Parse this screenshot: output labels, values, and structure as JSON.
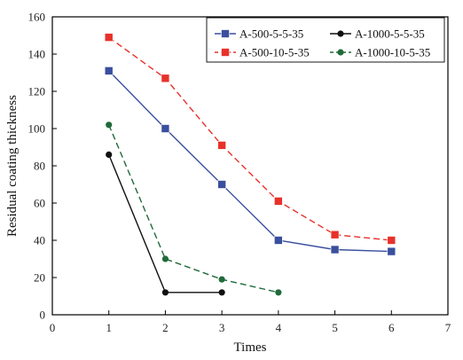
{
  "chart_data": {
    "type": "line",
    "xlabel": "Times",
    "ylabel": "Residual coating thickness",
    "xlim": [
      0,
      7
    ],
    "ylim": [
      0,
      160
    ],
    "xticks": [
      0,
      1,
      2,
      3,
      4,
      5,
      6,
      7
    ],
    "yticks": [
      0,
      20,
      40,
      60,
      80,
      100,
      120,
      140,
      160
    ],
    "grid": false,
    "legend_position": "top-right",
    "series": [
      {
        "name": "A-500-5-5-35",
        "color": "#3a4f9e",
        "line_style": "solid",
        "marker": "square",
        "x": [
          1,
          2,
          3,
          4,
          5,
          6
        ],
        "y": [
          131,
          100,
          70,
          40,
          35,
          34
        ]
      },
      {
        "name": "A-500-10-5-35",
        "color": "#e8312a",
        "line_style": "dashed",
        "marker": "square",
        "x": [
          1,
          2,
          3,
          4,
          5,
          6
        ],
        "y": [
          149,
          127,
          91,
          61,
          43,
          40
        ]
      },
      {
        "name": "A-1000-5-5-35",
        "color": "#111111",
        "line_style": "solid",
        "marker": "circle",
        "x": [
          1,
          2,
          3
        ],
        "y": [
          86,
          12,
          12
        ]
      },
      {
        "name": "A-1000-10-5-35",
        "color": "#1f6b3a",
        "line_style": "dashed",
        "marker": "circle",
        "x": [
          1,
          2,
          3,
          4
        ],
        "y": [
          102,
          30,
          19,
          12
        ]
      }
    ]
  }
}
